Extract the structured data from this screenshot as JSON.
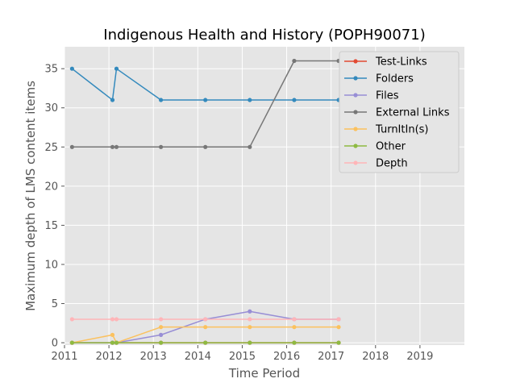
{
  "chart_data": {
    "type": "line",
    "title": "Indigenous Health and History (POPH90071)",
    "xlabel": "Time Period",
    "ylabel": "Maximum depth of LMS content items",
    "xlim": [
      2011,
      2020
    ],
    "ylim": [
      -0.3,
      37.8
    ],
    "xticks": [
      "2011",
      "2012",
      "2013",
      "2014",
      "2015",
      "2016",
      "2017",
      "2018",
      "2019"
    ],
    "yticks": [
      "0",
      "5",
      "10",
      "15",
      "20",
      "25",
      "30",
      "35"
    ],
    "x": [
      2011.17,
      2012.08,
      2012.17,
      2013.17,
      2014.17,
      2015.17,
      2016.17,
      2017.17
    ],
    "grid": true,
    "legend_position": "top-right",
    "series": [
      {
        "name": "Test-Links",
        "color": "#e24a33",
        "values": [
          0,
          0,
          0,
          0,
          0,
          0,
          0,
          0
        ]
      },
      {
        "name": "Folders",
        "color": "#348abd",
        "values": [
          35,
          31,
          35,
          31,
          31,
          31,
          31,
          31
        ]
      },
      {
        "name": "Files",
        "color": "#988ed5",
        "values": [
          0,
          0,
          0,
          1,
          3,
          4,
          3,
          3
        ]
      },
      {
        "name": "External Links",
        "color": "#777777",
        "values": [
          25,
          25,
          25,
          25,
          25,
          25,
          36,
          36
        ]
      },
      {
        "name": "TurnItIn(s)",
        "color": "#fbc15e",
        "values": [
          0,
          1,
          0,
          2,
          2,
          2,
          2,
          2
        ]
      },
      {
        "name": "Other",
        "color": "#8eba42",
        "values": [
          0,
          0,
          0,
          0,
          0,
          0,
          0,
          0
        ]
      },
      {
        "name": "Depth",
        "color": "#ffb5b8",
        "values": [
          3,
          3,
          3,
          3,
          3,
          3,
          3,
          3
        ]
      }
    ]
  }
}
